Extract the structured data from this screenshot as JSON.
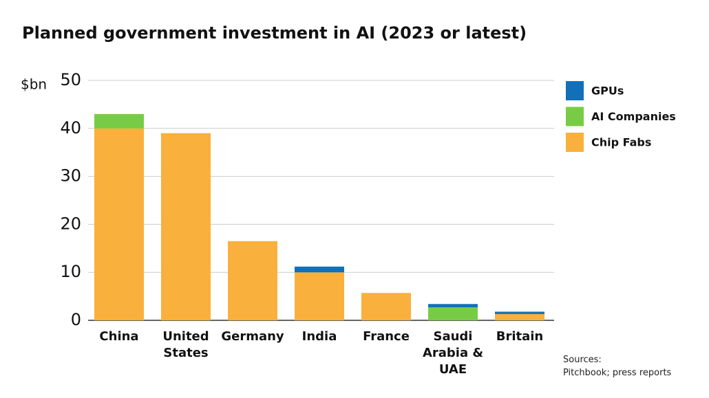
{
  "chart_data": {
    "type": "stacked_bar",
    "title": "Planned government investment in AI (2023 or latest)",
    "y_label": "$bn",
    "categories": [
      "China",
      "United States",
      "Germany",
      "India",
      "France",
      "Saudi Arabia & UAE",
      "Britain"
    ],
    "series": [
      {
        "name": "Chip Fabs",
        "color": "#f9b03d",
        "values": [
          40,
          39,
          16.5,
          10,
          5.7,
          0,
          1.3
        ]
      },
      {
        "name": "AI Companies",
        "color": "#78cc45",
        "values": [
          3,
          0,
          0,
          0,
          0,
          2.7,
          0
        ]
      },
      {
        "name": "GPUs",
        "color": "#1170b8",
        "values": [
          0,
          0,
          0,
          1.2,
          0,
          0.7,
          0.5
        ]
      }
    ],
    "ylim": [
      0,
      50
    ],
    "yticks": [
      0,
      10,
      20,
      30,
      40,
      50
    ],
    "grid": true,
    "source_label": "Sources:",
    "source": "Pitchbook; press reports"
  }
}
